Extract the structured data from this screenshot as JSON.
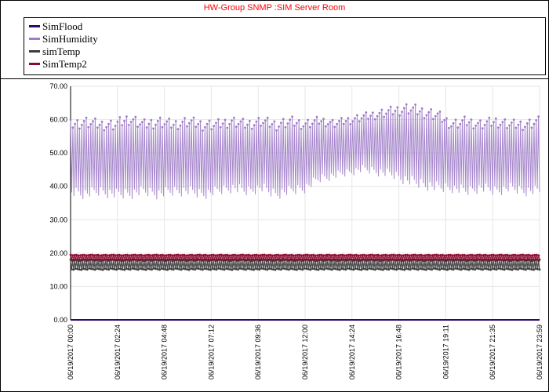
{
  "chart_data": {
    "type": "line",
    "title": "HW-Group SNMP :SIM Server Room",
    "title_color": "#ff0000",
    "xlabel": "",
    "ylabel": "",
    "ylim": [
      0,
      70
    ],
    "y_ticks": [
      "0.00",
      "10.00",
      "20.00",
      "30.00",
      "40.00",
      "50.00",
      "60.00",
      "70.00"
    ],
    "x_ticks": [
      "06/19/2017 00:00",
      "06/19/2017 02:24",
      "06/19/2017 04:48",
      "06/19/2017 07:12",
      "06/19/2017 09:36",
      "06/19/2017 12:00",
      "06/19/2017 14:24",
      "06/19/2017 16:48",
      "06/19/2017 19:11",
      "06/19/2017 21:35",
      "06/19/2017 23:59"
    ],
    "x_range": [
      "06/19/2017 00:00",
      "06/19/2017 23:59"
    ],
    "grid": true,
    "legend_position": "top",
    "series": [
      {
        "name": "SimFlood",
        "color": "#2e0a6e",
        "pattern": "constant",
        "level": 0,
        "values": [
          0,
          0
        ]
      },
      {
        "name": "SimHumidity",
        "color": "#9e7cc8",
        "pattern": "oscillating",
        "envelope_upper": [
          60,
          61,
          60,
          60,
          62,
          60,
          61,
          60,
          61,
          60,
          60,
          61,
          60,
          61,
          60,
          61,
          60,
          61,
          60,
          61,
          62,
          63,
          64,
          65,
          64,
          63,
          60,
          61,
          60,
          61,
          60,
          60,
          61
        ],
        "envelope_lower": [
          37,
          36,
          37,
          36,
          36,
          37,
          36,
          37,
          37,
          36,
          37,
          38,
          37,
          38,
          36,
          37,
          38,
          41,
          42,
          43,
          44,
          43,
          42,
          40,
          39,
          38,
          38,
          37,
          38,
          37,
          38,
          37,
          37
        ]
      },
      {
        "name": "simTemp",
        "color": "#3c3c3c",
        "pattern": "oscillating",
        "envelope_upper": [
          18,
          18
        ],
        "envelope_lower": [
          15,
          15
        ]
      },
      {
        "name": "SimTemp2",
        "color": "#8b0a2e",
        "pattern": "oscillating",
        "envelope_upper": [
          19.5,
          19.5
        ],
        "envelope_lower": [
          18,
          18
        ]
      }
    ]
  }
}
